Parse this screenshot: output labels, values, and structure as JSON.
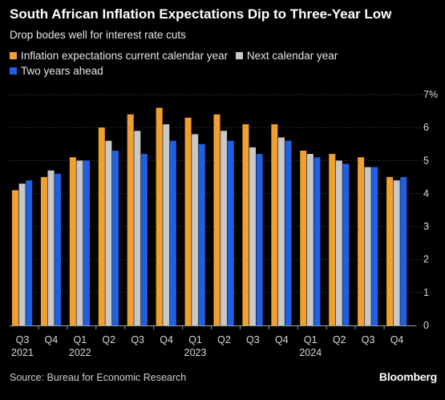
{
  "chart_data": {
    "type": "bar",
    "title": "South African Inflation Expectations Dip to Three-Year Low",
    "subtitle": "Drop bodes well for interest rate cuts",
    "categories": [
      "Q3",
      "Q4",
      "Q1",
      "Q2",
      "Q3",
      "Q4",
      "Q1",
      "Q2",
      "Q3",
      "Q4",
      "Q1",
      "Q2",
      "Q3",
      "Q4"
    ],
    "year_labels": [
      {
        "index": 0,
        "label": "2021"
      },
      {
        "index": 2,
        "label": "2022"
      },
      {
        "index": 6,
        "label": "2023"
      },
      {
        "index": 10,
        "label": "2024"
      }
    ],
    "series": [
      {
        "name": "Inflation expectations current calendar year",
        "color": "#f0a030",
        "values": [
          4.1,
          4.5,
          5.1,
          6.0,
          6.4,
          6.6,
          6.3,
          6.4,
          6.1,
          6.1,
          5.3,
          5.2,
          5.1,
          4.5
        ]
      },
      {
        "name": "Next calendar year",
        "color": "#c8c8c8",
        "values": [
          4.3,
          4.7,
          5.0,
          5.6,
          5.9,
          6.1,
          5.8,
          5.9,
          5.4,
          5.7,
          5.2,
          5.0,
          4.8,
          4.4
        ]
      },
      {
        "name": "Two years ahead",
        "color": "#1f5fe0",
        "values": [
          4.4,
          4.6,
          5.0,
          5.3,
          5.2,
          5.6,
          5.5,
          5.6,
          5.2,
          5.6,
          5.1,
          4.9,
          4.8,
          4.5
        ]
      }
    ],
    "ylim": [
      0,
      7
    ],
    "yticks": [
      "0",
      "1",
      "2",
      "3",
      "4",
      "5",
      "6",
      "7%"
    ],
    "grid": true,
    "y_axis_side": "right",
    "legend_position": "top-left"
  },
  "source": "Source: Bureau for Economic Research",
  "brand": "Bloomberg"
}
